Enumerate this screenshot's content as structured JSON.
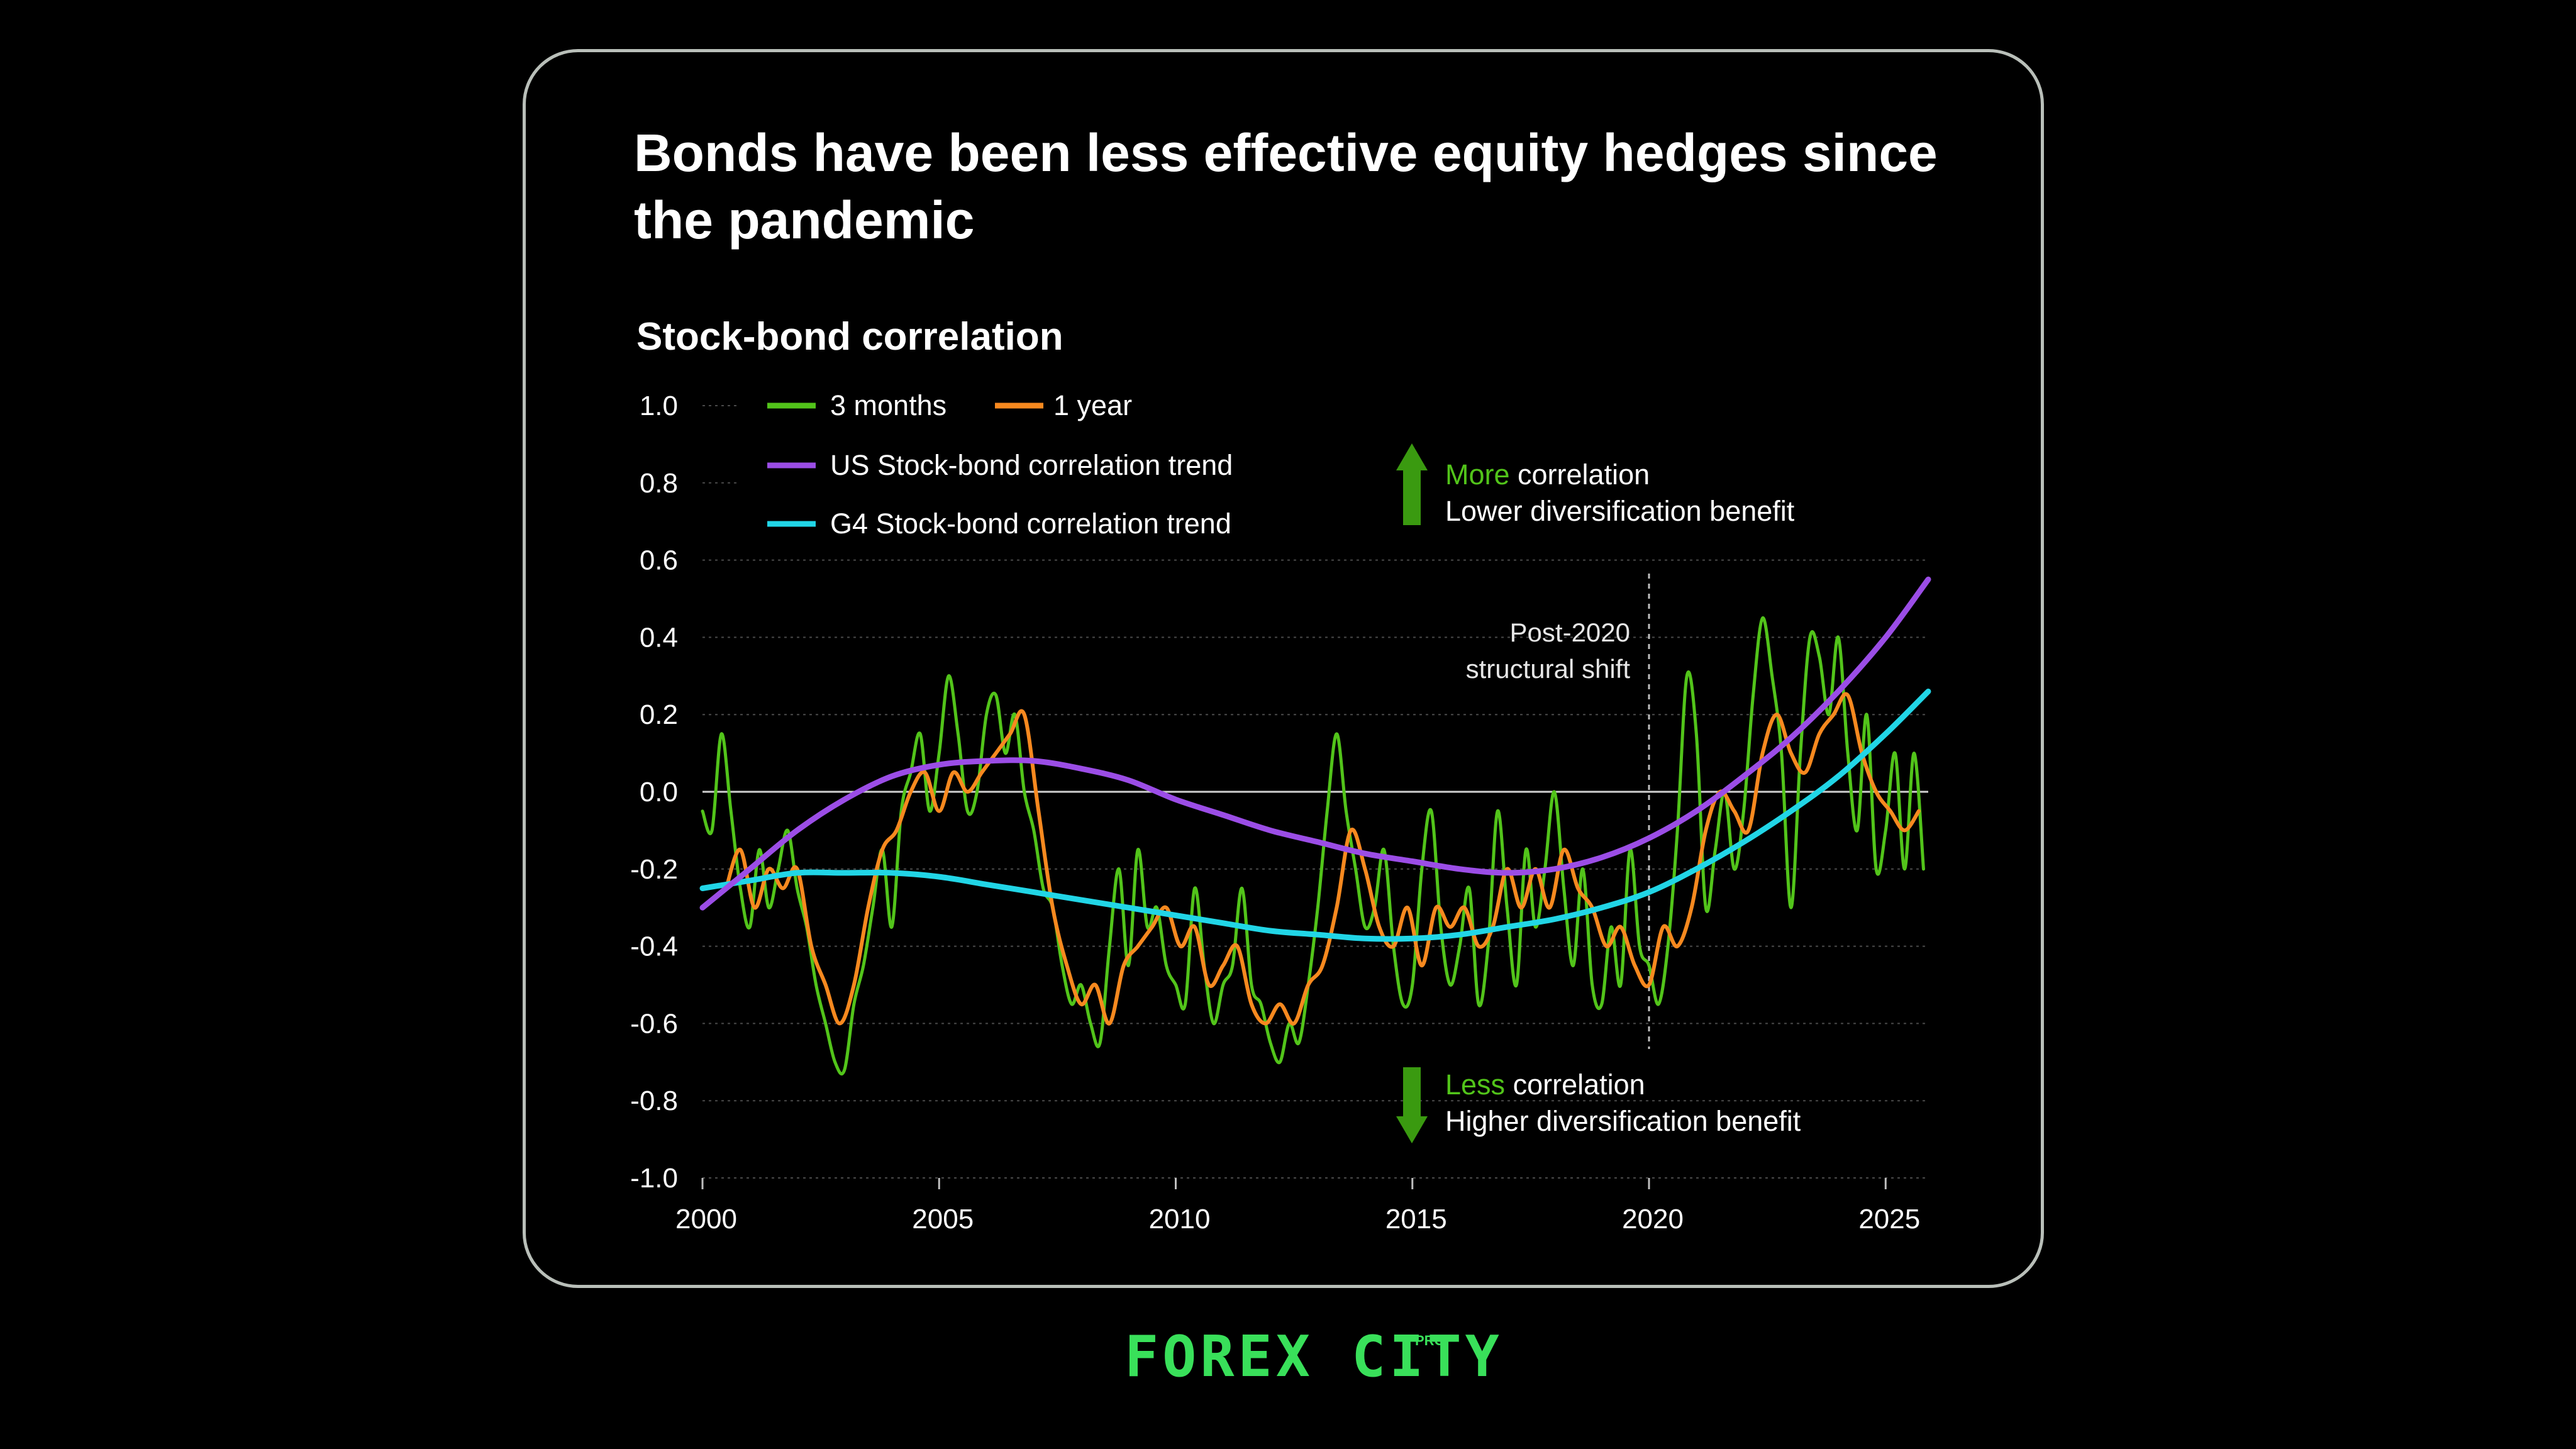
{
  "title": "Bonds have been less effective equity hedges since the pandemic",
  "subtitle": "Stock-bond correlation",
  "brand": {
    "name": "FOREX CITY",
    "sup": "PRO"
  },
  "colors": {
    "three_months": "#52c41a",
    "one_year": "#f7891f",
    "us_trend": "#9b4de6",
    "g4_trend": "#21d5e6",
    "arrow": "#3a9a10",
    "highlight": "#52c41a"
  },
  "annotations": {
    "more": {
      "highlight": "More",
      "rest": " correlation",
      "line2": "Lower diversification benefit"
    },
    "less": {
      "highlight": "Less",
      "rest": " correlation",
      "line2": "Higher diversification benefit"
    },
    "shift": {
      "line1": "Post-2020",
      "line2": "structural shift",
      "x": 2020
    }
  },
  "chart_data": {
    "type": "line",
    "title": "Bonds have been less effective equity hedges since the pandemic",
    "ylabel": "Stock-bond correlation",
    "xlim": [
      2000,
      2025.9
    ],
    "ylim": [
      -1.0,
      1.0
    ],
    "x_ticks": [
      2000,
      2005,
      2010,
      2015,
      2020,
      2025
    ],
    "y_ticks": [
      1.0,
      0.8,
      0.6,
      0.4,
      0.2,
      0.0,
      -0.2,
      -0.4,
      -0.6,
      -0.8,
      -1.0
    ],
    "y_tick_labels": [
      "1.0",
      "0.8",
      "0.6",
      "0.4",
      "0.2",
      "0.0",
      "-0.2",
      "-0.4",
      "-0.6",
      "-0.8",
      "-1.0"
    ],
    "grid": "horizontal dotted",
    "legend_placement": "top-left",
    "series": [
      {
        "name": "3 months",
        "x": [
          2000.0,
          2000.2,
          2000.4,
          2000.6,
          2000.8,
          2001.0,
          2001.2,
          2001.4,
          2001.6,
          2001.8,
          2002.0,
          2002.2,
          2002.4,
          2002.6,
          2002.8,
          2003.0,
          2003.2,
          2003.4,
          2003.6,
          2003.8,
          2004.0,
          2004.2,
          2004.4,
          2004.6,
          2004.8,
          2005.0,
          2005.2,
          2005.4,
          2005.6,
          2005.8,
          2006.0,
          2006.2,
          2006.4,
          2006.6,
          2006.8,
          2007.0,
          2007.2,
          2007.4,
          2007.6,
          2007.8,
          2008.0,
          2008.2,
          2008.4,
          2008.6,
          2008.8,
          2009.0,
          2009.2,
          2009.4,
          2009.6,
          2009.8,
          2010.0,
          2010.2,
          2010.4,
          2010.6,
          2010.8,
          2011.0,
          2011.2,
          2011.4,
          2011.6,
          2011.8,
          2012.0,
          2012.2,
          2012.4,
          2012.6,
          2012.8,
          2013.0,
          2013.2,
          2013.4,
          2013.6,
          2013.8,
          2014.0,
          2014.2,
          2014.4,
          2014.6,
          2014.8,
          2015.0,
          2015.2,
          2015.4,
          2015.6,
          2015.8,
          2016.0,
          2016.2,
          2016.4,
          2016.6,
          2016.8,
          2017.0,
          2017.2,
          2017.4,
          2017.6,
          2017.8,
          2018.0,
          2018.2,
          2018.4,
          2018.6,
          2018.8,
          2019.0,
          2019.2,
          2019.4,
          2019.6,
          2019.8,
          2020.0,
          2020.2,
          2020.4,
          2020.6,
          2020.8,
          2021.0,
          2021.2,
          2021.4,
          2021.6,
          2021.8,
          2022.0,
          2022.2,
          2022.4,
          2022.6,
          2022.8,
          2023.0,
          2023.2,
          2023.4,
          2023.6,
          2023.8,
          2024.0,
          2024.2,
          2024.4,
          2024.6,
          2024.8,
          2025.0,
          2025.2,
          2025.4,
          2025.6,
          2025.8
        ],
        "values": [
          -0.05,
          -0.1,
          0.15,
          -0.05,
          -0.25,
          -0.35,
          -0.15,
          -0.3,
          -0.2,
          -0.1,
          -0.25,
          -0.35,
          -0.5,
          -0.6,
          -0.7,
          -0.72,
          -0.55,
          -0.45,
          -0.3,
          -0.15,
          -0.35,
          -0.05,
          0.05,
          0.15,
          -0.05,
          0.1,
          0.3,
          0.15,
          -0.05,
          0.0,
          0.2,
          0.25,
          0.1,
          0.2,
          0.0,
          -0.1,
          -0.25,
          -0.3,
          -0.45,
          -0.55,
          -0.5,
          -0.6,
          -0.65,
          -0.4,
          -0.2,
          -0.45,
          -0.15,
          -0.35,
          -0.3,
          -0.45,
          -0.5,
          -0.55,
          -0.25,
          -0.45,
          -0.6,
          -0.5,
          -0.45,
          -0.25,
          -0.5,
          -0.55,
          -0.65,
          -0.7,
          -0.6,
          -0.65,
          -0.5,
          -0.3,
          -0.05,
          0.15,
          -0.05,
          -0.2,
          -0.35,
          -0.3,
          -0.15,
          -0.4,
          -0.55,
          -0.5,
          -0.2,
          -0.05,
          -0.35,
          -0.5,
          -0.4,
          -0.25,
          -0.55,
          -0.4,
          -0.05,
          -0.3,
          -0.5,
          -0.15,
          -0.35,
          -0.2,
          0.0,
          -0.25,
          -0.45,
          -0.2,
          -0.5,
          -0.55,
          -0.35,
          -0.5,
          -0.15,
          -0.4,
          -0.45,
          -0.55,
          -0.4,
          -0.1,
          0.3,
          0.15,
          -0.3,
          -0.15,
          0.0,
          -0.2,
          -0.05,
          0.25,
          0.45,
          0.3,
          0.1,
          -0.3,
          0.1,
          0.4,
          0.35,
          0.2,
          0.4,
          0.1,
          -0.1,
          0.2,
          -0.2,
          -0.1,
          0.1,
          -0.2,
          0.1,
          -0.2
        ]
      },
      {
        "name": "1 year",
        "x": [
          2000.5,
          2000.8,
          2001.1,
          2001.4,
          2001.7,
          2002.0,
          2002.3,
          2002.6,
          2002.9,
          2003.2,
          2003.5,
          2003.8,
          2004.1,
          2004.4,
          2004.7,
          2005.0,
          2005.3,
          2005.6,
          2005.9,
          2006.2,
          2006.5,
          2006.8,
          2007.1,
          2007.4,
          2007.7,
          2008.0,
          2008.3,
          2008.6,
          2008.9,
          2009.2,
          2009.5,
          2009.8,
          2010.1,
          2010.4,
          2010.7,
          2011.0,
          2011.3,
          2011.6,
          2011.9,
          2012.2,
          2012.5,
          2012.8,
          2013.1,
          2013.4,
          2013.7,
          2014.0,
          2014.3,
          2014.6,
          2014.9,
          2015.2,
          2015.5,
          2015.8,
          2016.1,
          2016.4,
          2016.7,
          2017.0,
          2017.3,
          2017.6,
          2017.9,
          2018.2,
          2018.5,
          2018.8,
          2019.1,
          2019.4,
          2019.7,
          2020.0,
          2020.3,
          2020.6,
          2020.9,
          2021.2,
          2021.5,
          2021.8,
          2022.1,
          2022.4,
          2022.7,
          2023.0,
          2023.3,
          2023.6,
          2023.9,
          2024.2,
          2024.5,
          2024.8,
          2025.1,
          2025.4,
          2025.7
        ],
        "values": [
          -0.25,
          -0.15,
          -0.3,
          -0.2,
          -0.25,
          -0.2,
          -0.4,
          -0.5,
          -0.6,
          -0.5,
          -0.3,
          -0.15,
          -0.1,
          0.0,
          0.05,
          -0.05,
          0.05,
          0.0,
          0.05,
          0.1,
          0.15,
          0.2,
          -0.05,
          -0.3,
          -0.45,
          -0.55,
          -0.5,
          -0.6,
          -0.45,
          -0.4,
          -0.35,
          -0.3,
          -0.4,
          -0.35,
          -0.5,
          -0.45,
          -0.4,
          -0.55,
          -0.6,
          -0.55,
          -0.6,
          -0.5,
          -0.45,
          -0.3,
          -0.1,
          -0.2,
          -0.35,
          -0.4,
          -0.3,
          -0.45,
          -0.3,
          -0.35,
          -0.3,
          -0.4,
          -0.35,
          -0.2,
          -0.3,
          -0.2,
          -0.3,
          -0.15,
          -0.25,
          -0.3,
          -0.4,
          -0.35,
          -0.45,
          -0.5,
          -0.35,
          -0.4,
          -0.3,
          -0.1,
          0.0,
          -0.05,
          -0.1,
          0.1,
          0.2,
          0.1,
          0.05,
          0.15,
          0.2,
          0.25,
          0.1,
          0.0,
          -0.05,
          -0.1,
          -0.05
        ]
      },
      {
        "name": "US Stock-bond correlation trend",
        "x": [
          2000,
          2001,
          2002,
          2003,
          2004,
          2005,
          2006,
          2007,
          2008,
          2009,
          2010,
          2011,
          2012,
          2013,
          2014,
          2015,
          2016,
          2017,
          2018,
          2019,
          2020,
          2021,
          2022,
          2023,
          2024,
          2025,
          2025.9
        ],
        "values": [
          -0.3,
          -0.2,
          -0.1,
          -0.02,
          0.04,
          0.07,
          0.08,
          0.08,
          0.06,
          0.03,
          -0.02,
          -0.06,
          -0.1,
          -0.13,
          -0.16,
          -0.18,
          -0.2,
          -0.21,
          -0.2,
          -0.17,
          -0.12,
          -0.05,
          0.04,
          0.14,
          0.26,
          0.4,
          0.55
        ]
      },
      {
        "name": "G4 Stock-bond correlation trend",
        "x": [
          2000,
          2001,
          2002,
          2003,
          2004,
          2005,
          2006,
          2007,
          2008,
          2009,
          2010,
          2011,
          2012,
          2013,
          2014,
          2015,
          2016,
          2017,
          2018,
          2019,
          2020,
          2021,
          2022,
          2023,
          2024,
          2025,
          2025.9
        ],
        "values": [
          -0.25,
          -0.23,
          -0.21,
          -0.21,
          -0.21,
          -0.22,
          -0.24,
          -0.26,
          -0.28,
          -0.3,
          -0.32,
          -0.34,
          -0.36,
          -0.37,
          -0.38,
          -0.38,
          -0.37,
          -0.35,
          -0.33,
          -0.3,
          -0.26,
          -0.2,
          -0.13,
          -0.05,
          0.04,
          0.15,
          0.26
        ]
      }
    ]
  }
}
